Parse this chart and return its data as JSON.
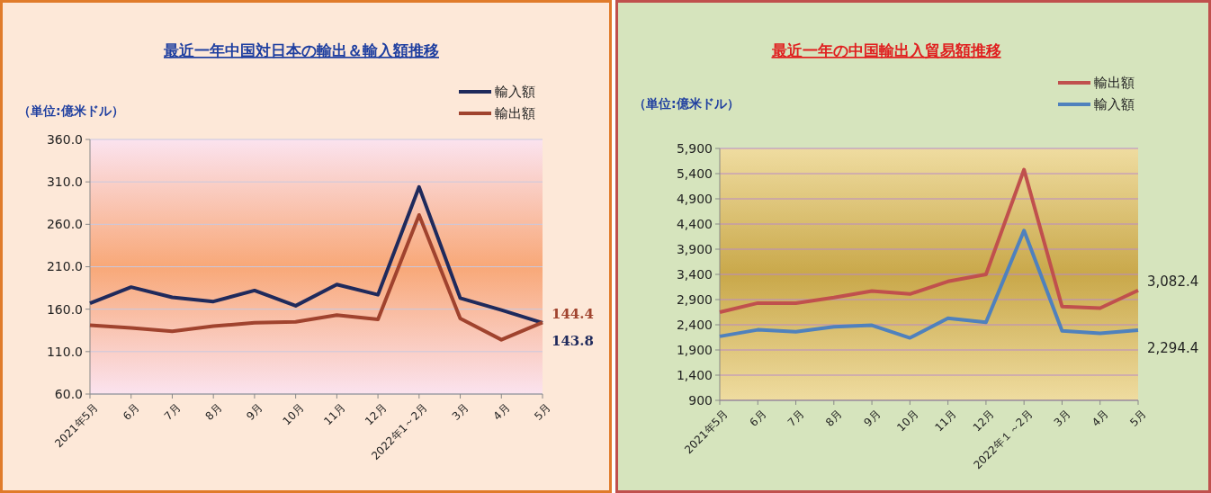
{
  "chart_data": [
    {
      "type": "line",
      "title": "最近一年中国対日本の輸出＆輸入額推移",
      "annotations": [
        "（単位:億米ドル）"
      ],
      "categories": [
        "2021年5月",
        "6月",
        "7月",
        "8月",
        "9月",
        "10月",
        "11月",
        "12月",
        "2022年1～2月",
        "3月",
        "4月",
        "5月"
      ],
      "series": [
        {
          "name": "輸入額",
          "color": "#1f2a5c",
          "values": [
            167,
            186,
            174,
            169,
            182,
            164,
            189,
            177,
            304,
            173,
            159,
            143.8
          ],
          "value_labels": [
            null,
            null,
            null,
            null,
            null,
            null,
            null,
            null,
            null,
            null,
            null,
            "143.8"
          ]
        },
        {
          "name": "輸出額",
          "color": "#a0432e",
          "values": [
            141,
            138,
            134,
            140,
            144,
            145,
            153,
            148,
            271,
            149,
            124,
            144.4
          ],
          "value_labels": [
            null,
            null,
            null,
            null,
            null,
            null,
            null,
            null,
            null,
            null,
            null,
            "144.4"
          ]
        }
      ],
      "ylim": [
        60,
        360
      ],
      "yticks": [
        {
          "value": 60,
          "label": "60.0"
        },
        {
          "value": 110,
          "label": "110.0"
        },
        {
          "value": 160,
          "label": "160.0"
        },
        {
          "value": 210,
          "label": "210.0"
        },
        {
          "value": 260,
          "label": "260.0"
        },
        {
          "value": 310,
          "label": "310.0"
        },
        {
          "value": 360,
          "label": "360.0"
        }
      ],
      "grid": "y",
      "legend": "top right"
    },
    {
      "type": "line",
      "title": "最近一年の中国輸出入貿易額推移",
      "annotations": [
        "（単位:億米ドル）"
      ],
      "categories": [
        "2021年5月",
        "6月",
        "7月",
        "8月",
        "9月",
        "10月",
        "11月",
        "12月",
        "2022年１～2月",
        "3月",
        "4月",
        "5月"
      ],
      "series": [
        {
          "name": "輸出額",
          "color": "#c0504d",
          "values": [
            2650,
            2830,
            2830,
            2940,
            3070,
            3010,
            3260,
            3400,
            5480,
            2760,
            2730,
            3082.4
          ],
          "value_labels": [
            null,
            null,
            null,
            null,
            null,
            null,
            null,
            null,
            null,
            null,
            null,
            "3,082.4"
          ]
        },
        {
          "name": "輸入額",
          "color": "#4f81bd",
          "values": [
            2170,
            2300,
            2260,
            2360,
            2390,
            2140,
            2530,
            2450,
            4270,
            2280,
            2230,
            2294.4
          ],
          "value_labels": [
            null,
            null,
            null,
            null,
            null,
            null,
            null,
            null,
            null,
            null,
            null,
            "2,294.4"
          ]
        }
      ],
      "ylim": [
        900,
        5900
      ],
      "yticks": [
        {
          "value": 900,
          "label": "900"
        },
        {
          "value": 1400,
          "label": "1,400"
        },
        {
          "value": 1900,
          "label": "1,900"
        },
        {
          "value": 2400,
          "label": "2,400"
        },
        {
          "value": 2900,
          "label": "2,900"
        },
        {
          "value": 3400,
          "label": "3,400"
        },
        {
          "value": 3900,
          "label": "3,900"
        },
        {
          "value": 4400,
          "label": "4,400"
        },
        {
          "value": 4900,
          "label": "4,900"
        },
        {
          "value": 5400,
          "label": "5,400"
        },
        {
          "value": 5900,
          "label": "5,900"
        }
      ],
      "grid": "y",
      "legend": "top right"
    }
  ]
}
